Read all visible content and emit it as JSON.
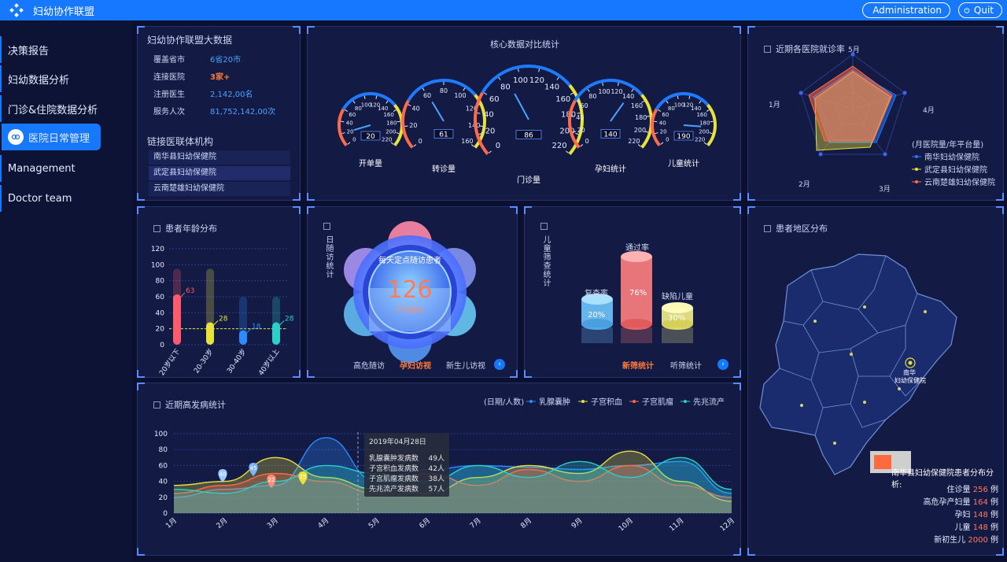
{
  "app": {
    "title": "妇幼协作联盟",
    "admin_label": "Administration",
    "quit_label": "Quit"
  },
  "sidebar": {
    "items": [
      {
        "label": "决策报告"
      },
      {
        "label": "妇幼数据分析"
      },
      {
        "label": "门诊&住院数据分析"
      },
      {
        "label": "医院日常管理"
      },
      {
        "label": "Management"
      },
      {
        "label": "Doctor team"
      }
    ],
    "active_index": 3
  },
  "bigdata": {
    "title": "妇幼协作联盟大数据",
    "stats": [
      {
        "key": "覆盖省市",
        "value": "6省20市"
      },
      {
        "key": "连接医院",
        "value": "3家+"
      },
      {
        "key": "注册医生",
        "value": "2,142,00名"
      },
      {
        "key": "服务人次",
        "value": "81,752,142,00次"
      }
    ],
    "institutions_title": "链接医联体机构",
    "institutions": [
      "南华县妇幼保健院",
      "武定县妇幼保健院",
      "云南楚雄妇幼保健院"
    ]
  },
  "core": {
    "title": "核心数据对比统计",
    "gauges": [
      {
        "name": "开单量",
        "value": "20",
        "ticks": [
          "0",
          "20",
          "40",
          "60",
          "80",
          "100",
          "120",
          "140",
          "160",
          "180",
          "200",
          "220"
        ]
      },
      {
        "name": "转诊量",
        "value": "61",
        "ticks": [
          "0",
          "20",
          "40",
          "60",
          "80",
          "100",
          "120",
          "140",
          "160"
        ]
      },
      {
        "name": "门诊量",
        "value": "86",
        "ticks": [
          "0",
          "20",
          "40",
          "60",
          "80",
          "100",
          "120",
          "140",
          "160",
          "180",
          "200",
          "220"
        ]
      },
      {
        "name": "孕妇统计",
        "value": "140",
        "ticks": [
          "0",
          "20",
          "40",
          "60",
          "80",
          "100",
          "120",
          "140",
          "160",
          "180",
          "200",
          "220"
        ]
      },
      {
        "name": "儿童统计",
        "value": "190",
        "ticks": [
          "0",
          "20",
          "40",
          "60",
          "80",
          "100",
          "120",
          "140",
          "160",
          "180",
          "200",
          "220"
        ]
      }
    ]
  },
  "radar": {
    "title": "近期各医院就诊率",
    "axes": [
      "5月",
      "4月",
      "3月",
      "2月",
      "1月"
    ],
    "legend_title": "(月医院量/年平台量)",
    "legend": [
      {
        "name": "南华妇幼保健院",
        "color": "#1e7bff"
      },
      {
        "name": "武定县妇幼保健院",
        "color": "#e8e23a"
      },
      {
        "name": "云南楚雄妇幼保健院",
        "color": "#ff6b4a"
      }
    ]
  },
  "age": {
    "title": "患者年龄分布",
    "yticks": [
      "0",
      "20",
      "40",
      "60",
      "80",
      "100",
      "120"
    ],
    "chart_data": {
      "type": "bar",
      "categories": [
        "20岁以下",
        "20-30岁",
        "30-40岁",
        "40岁以上"
      ],
      "values": [
        63,
        28,
        18,
        28
      ],
      "ylim": [
        0,
        120
      ]
    }
  },
  "followup": {
    "side_label": "日随访统计",
    "center_title": "每天定点随访患者",
    "center_value": "126",
    "center_sub": "产后随访",
    "tabs": [
      "高危随访",
      "孕妇访视",
      "新生儿访视"
    ],
    "active_tab": 1
  },
  "screening": {
    "side_label": "儿童筛查统计",
    "items": [
      {
        "name": "复查率",
        "value": "20%"
      },
      {
        "name": "通过率",
        "value": "76%"
      },
      {
        "name": "缺陷儿童",
        "value": "30%"
      }
    ],
    "tabs": [
      "新筛统计",
      "听筛统计"
    ],
    "active_tab": 0
  },
  "region": {
    "title": "患者地区分布",
    "map_labels": [
      "南华",
      "妇幼保健院"
    ],
    "analysis_title": "南华县妇幼保健院患者分布分析:",
    "rows": [
      {
        "key": "住诊量",
        "value": "256",
        "unit": "例"
      },
      {
        "key": "高危孕产妇量",
        "value": "164",
        "unit": "例"
      },
      {
        "key": "孕妇",
        "value": "148",
        "unit": "例"
      },
      {
        "key": "儿童",
        "value": "148",
        "unit": "例"
      },
      {
        "key": "新初生儿",
        "value": "2000",
        "unit": "例"
      }
    ]
  },
  "disease": {
    "title": "近期高发病统计",
    "legend_unit": "(日期/人数)",
    "tooltip": {
      "date": "2019年04月28日",
      "rows": [
        {
          "name": "乳腺囊肿发病数",
          "value": "49人"
        },
        {
          "name": "子宫积血发病数",
          "value": "42人"
        },
        {
          "name": "子宫肌瘤发病数",
          "value": "38人"
        },
        {
          "name": "先兆流产发病数",
          "value": "57人"
        }
      ]
    },
    "markers": [
      "40",
      "45",
      "22",
      "25"
    ],
    "yticks": [
      "0",
      "20",
      "40",
      "60",
      "80",
      "100"
    ],
    "chart_data": {
      "type": "area",
      "x": [
        "1月",
        "2月",
        "3月",
        "4月",
        "5月",
        "6月",
        "7月",
        "8月",
        "9月",
        "10月",
        "11月",
        "12月"
      ],
      "ylim": [
        0,
        100
      ],
      "series": [
        {
          "name": "乳腺囊肿",
          "color": "#2a8cff",
          "values": [
            20,
            30,
            35,
            95,
            40,
            55,
            60,
            58,
            55,
            60,
            65,
            25
          ]
        },
        {
          "name": "子宫积血",
          "color": "#e8e23a",
          "values": [
            35,
            40,
            70,
            45,
            30,
            25,
            45,
            60,
            50,
            78,
            40,
            15
          ]
        },
        {
          "name": "子宫肌瘤",
          "color": "#ff6b4a",
          "values": [
            25,
            35,
            50,
            40,
            25,
            50,
            35,
            55,
            40,
            60,
            35,
            20
          ]
        },
        {
          "name": "先兆流产",
          "color": "#2ad1c9",
          "values": [
            30,
            25,
            40,
            60,
            50,
            40,
            60,
            45,
            65,
            45,
            70,
            30
          ]
        }
      ]
    }
  }
}
